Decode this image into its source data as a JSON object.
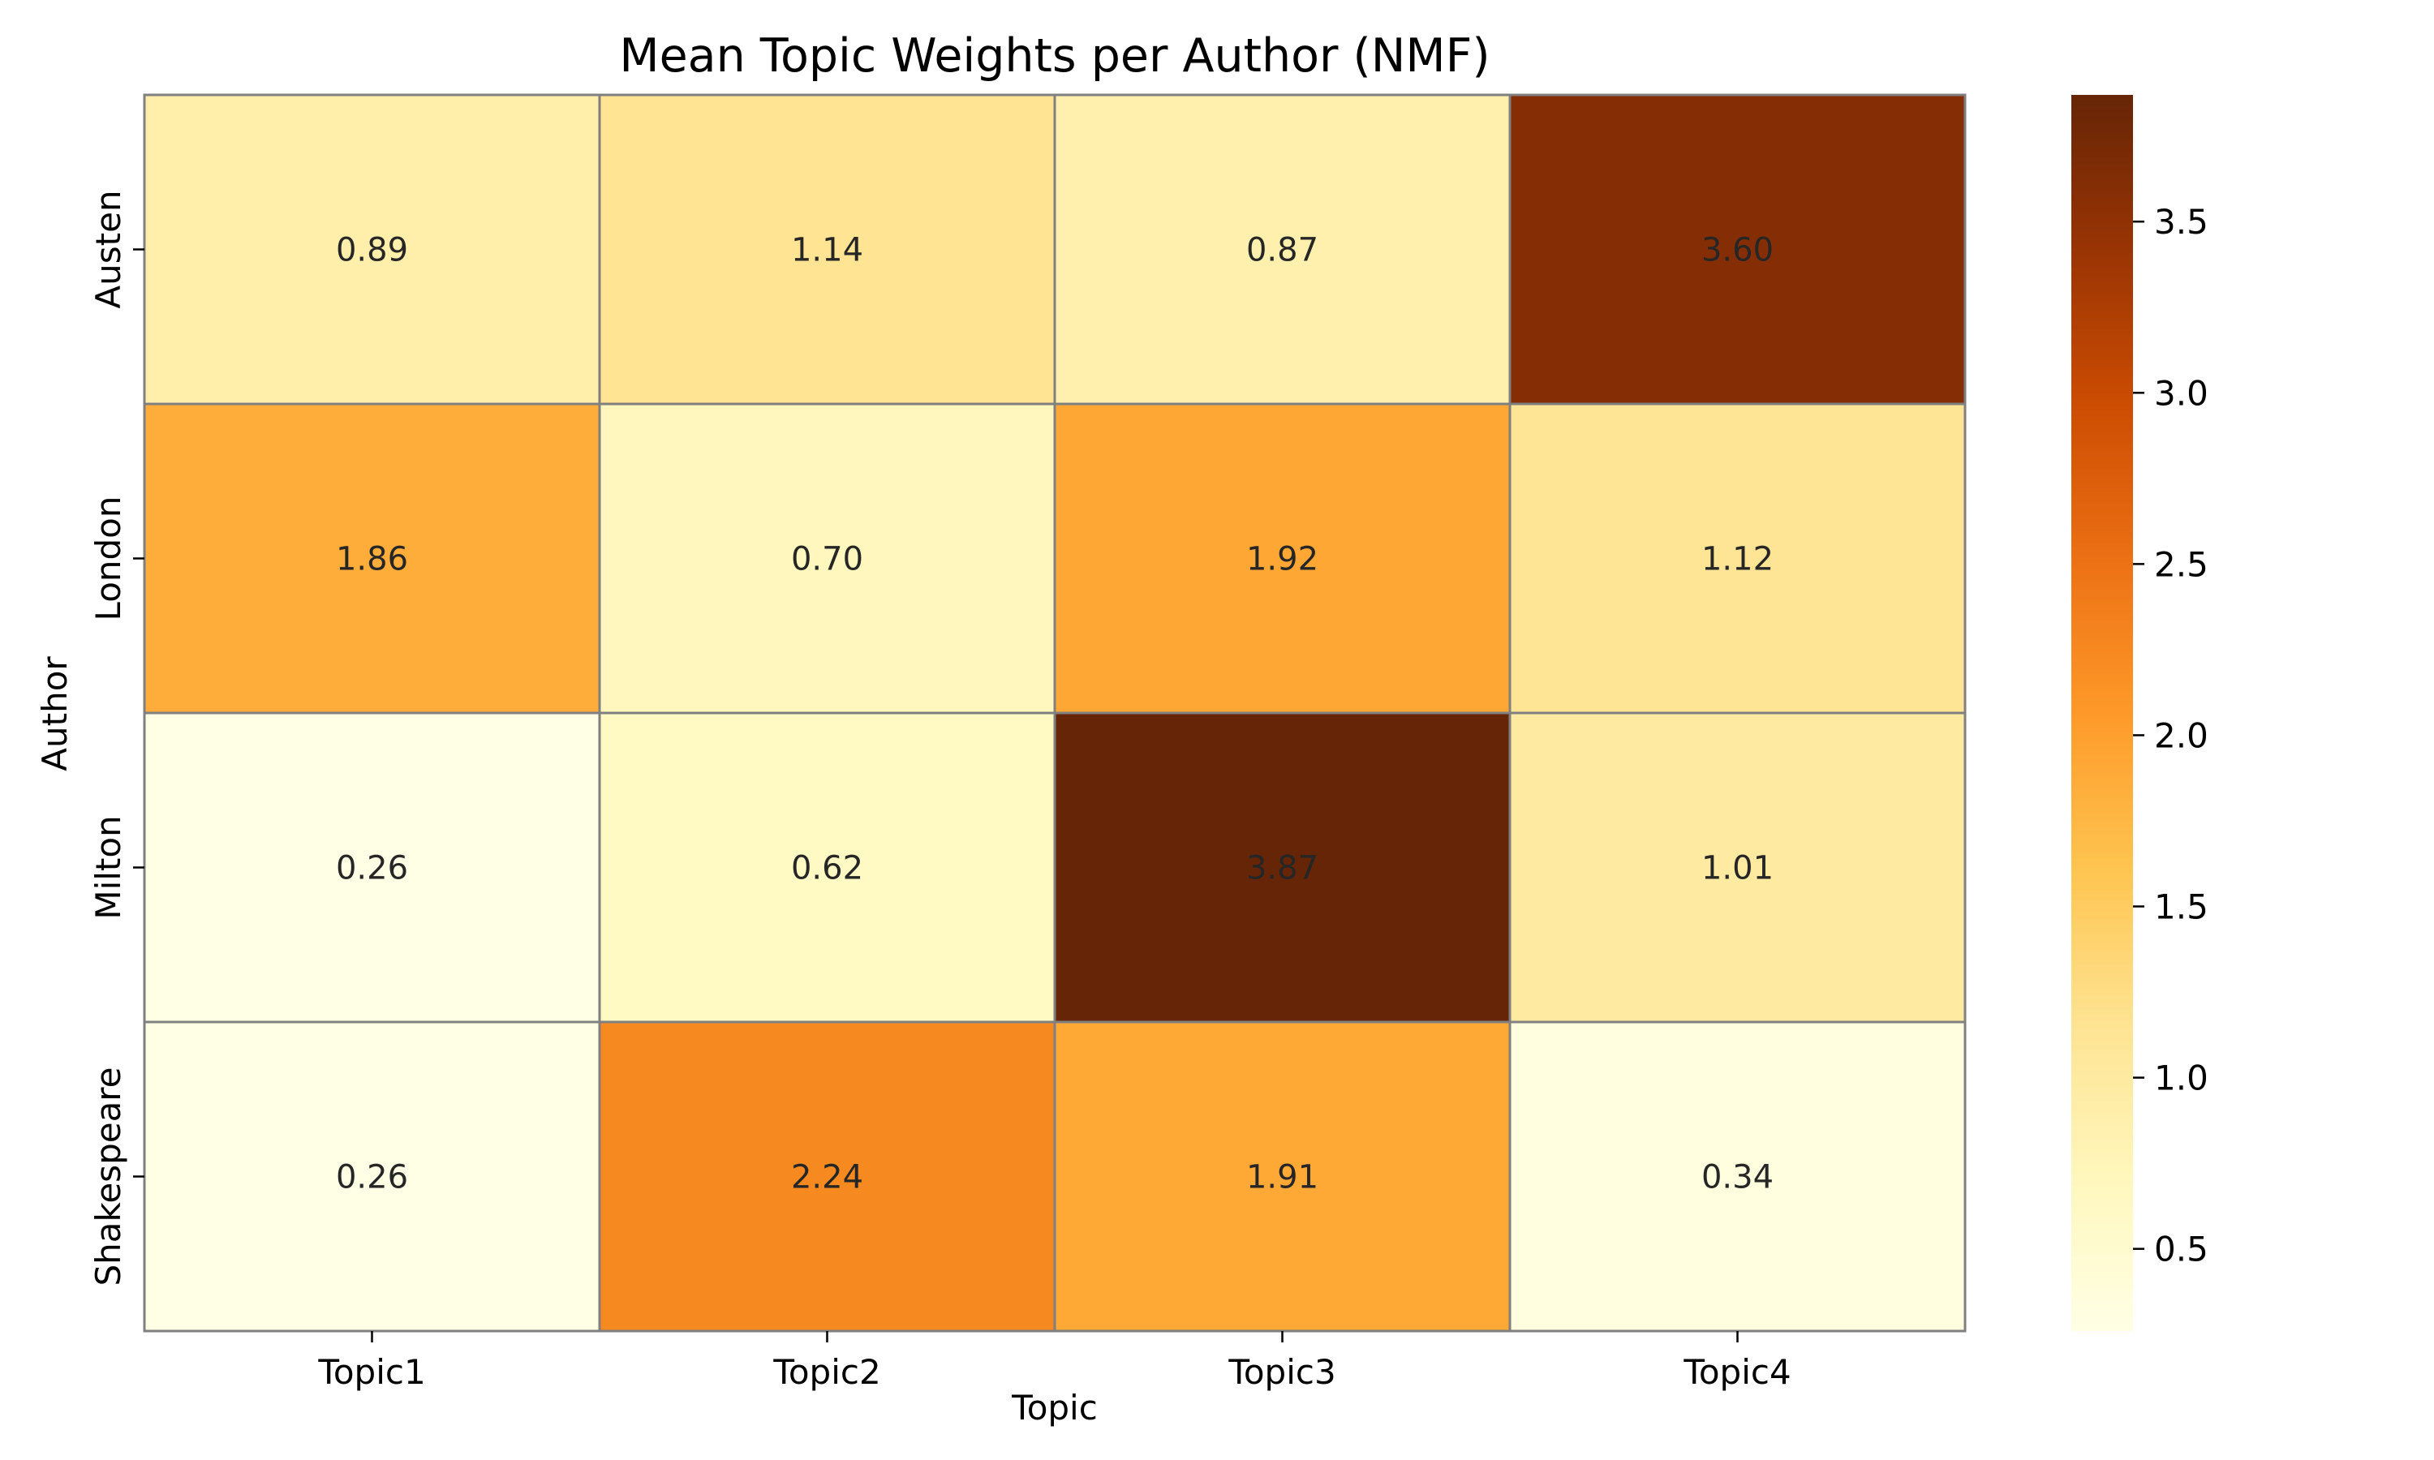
{
  "chart_data": {
    "type": "heatmap",
    "title": "Mean Topic Weights per Author (NMF)",
    "xlabel": "Topic",
    "ylabel": "Author",
    "x_categories": [
      "Topic1",
      "Topic2",
      "Topic3",
      "Topic4"
    ],
    "y_categories": [
      "Austen",
      "London",
      "Milton",
      "Shakespeare"
    ],
    "values": [
      [
        0.89,
        1.14,
        0.87,
        3.6
      ],
      [
        1.86,
        0.7,
        1.92,
        1.12
      ],
      [
        0.26,
        0.62,
        3.87,
        1.01
      ],
      [
        0.26,
        2.24,
        1.91,
        0.34
      ]
    ],
    "value_format": "0.00",
    "colormap": "YlOrBr",
    "colorbar": {
      "range": [
        0.26,
        3.87
      ],
      "ticks": [
        0.5,
        1.0,
        1.5,
        2.0,
        2.5,
        3.0,
        3.5
      ],
      "tick_labels": [
        "0.5",
        "1.0",
        "1.5",
        "2.0",
        "2.5",
        "3.0",
        "3.5"
      ],
      "placement": "right"
    },
    "cell_border_color": "#808080",
    "colormap_stops": [
      "#ffffe5",
      "#fff7bc",
      "#fee391",
      "#fec44f",
      "#fe9929",
      "#ec7014",
      "#cc4c02",
      "#993404",
      "#662506"
    ]
  }
}
